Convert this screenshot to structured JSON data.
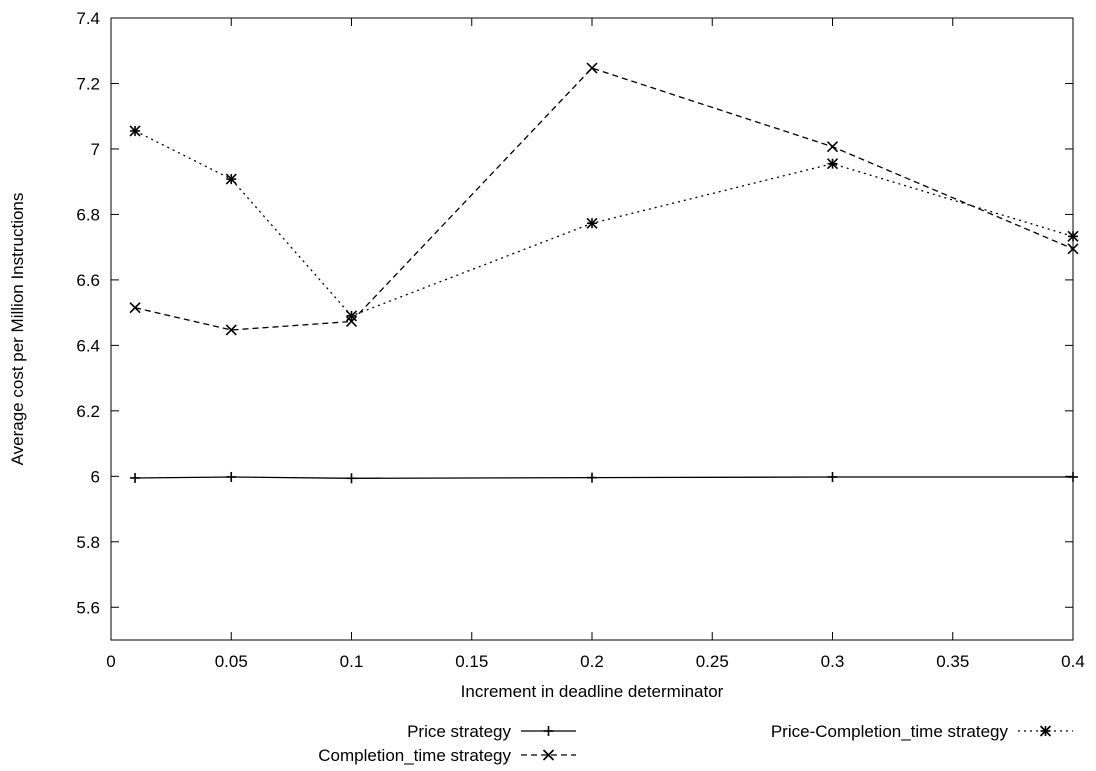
{
  "chart_data": {
    "type": "line",
    "title": "",
    "xlabel": "Increment in deadline determinator",
    "ylabel": "Average cost per Million Instructions",
    "xlim": [
      0,
      0.4
    ],
    "ylim": [
      5.5,
      7.4
    ],
    "x_ticks": [
      "0",
      "0.05",
      "0.1",
      "0.15",
      "0.2",
      "0.25",
      "0.3",
      "0.35",
      "0.4"
    ],
    "y_ticks": [
      "5.6",
      "5.8",
      "6",
      "6.2",
      "6.4",
      "6.6",
      "6.8",
      "7",
      "7.2",
      "7.4"
    ],
    "grid": false,
    "legend_position": "bottom",
    "series": [
      {
        "name": "Price strategy",
        "style": "solid",
        "marker": "plus",
        "x": [
          0.01,
          0.05,
          0.1,
          0.2,
          0.3,
          0.4
        ],
        "y": [
          5.995,
          5.998,
          5.994,
          5.996,
          5.998,
          5.998
        ]
      },
      {
        "name": "Completion_time strategy",
        "style": "dashed",
        "marker": "cross",
        "x": [
          0.01,
          0.05,
          0.1,
          0.2,
          0.3,
          0.4
        ],
        "y": [
          6.515,
          6.447,
          6.473,
          7.247,
          7.007,
          6.695
        ]
      },
      {
        "name": "Price-Completion_time strategy",
        "style": "dotted",
        "marker": "star",
        "x": [
          0.01,
          0.05,
          0.1,
          0.2,
          0.3,
          0.4
        ],
        "y": [
          7.055,
          6.908,
          6.49,
          6.773,
          6.955,
          6.733
        ]
      }
    ]
  }
}
